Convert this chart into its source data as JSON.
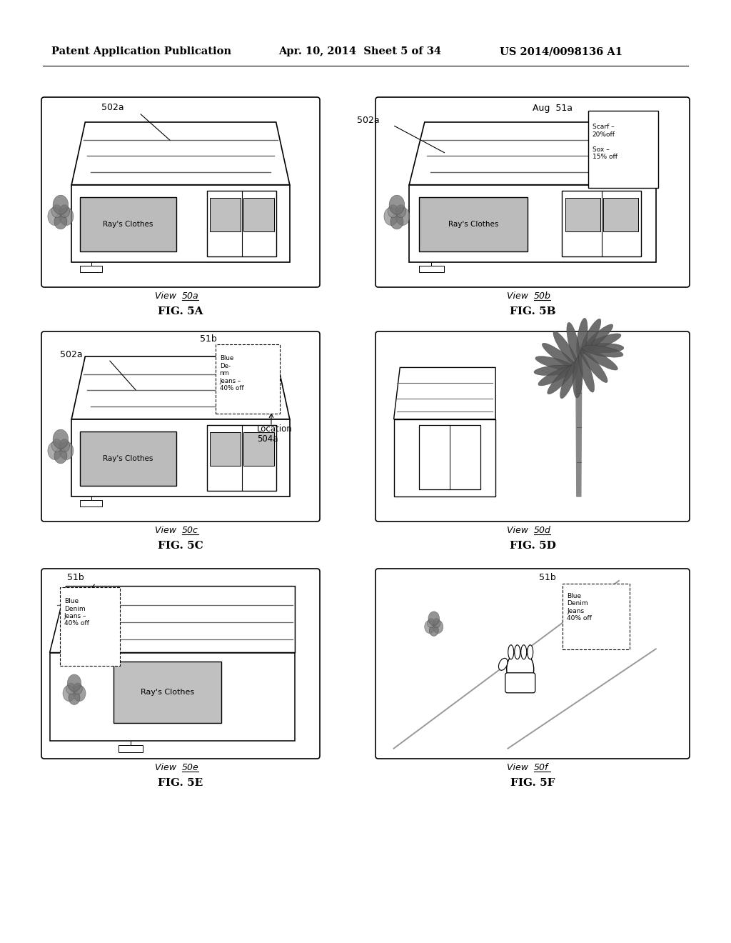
{
  "background_color": "#ffffff",
  "header_left": "Patent Application Publication",
  "header_mid": "Apr. 10, 2014  Sheet 5 of 34",
  "header_right": "US 2014/0098136 A1"
}
